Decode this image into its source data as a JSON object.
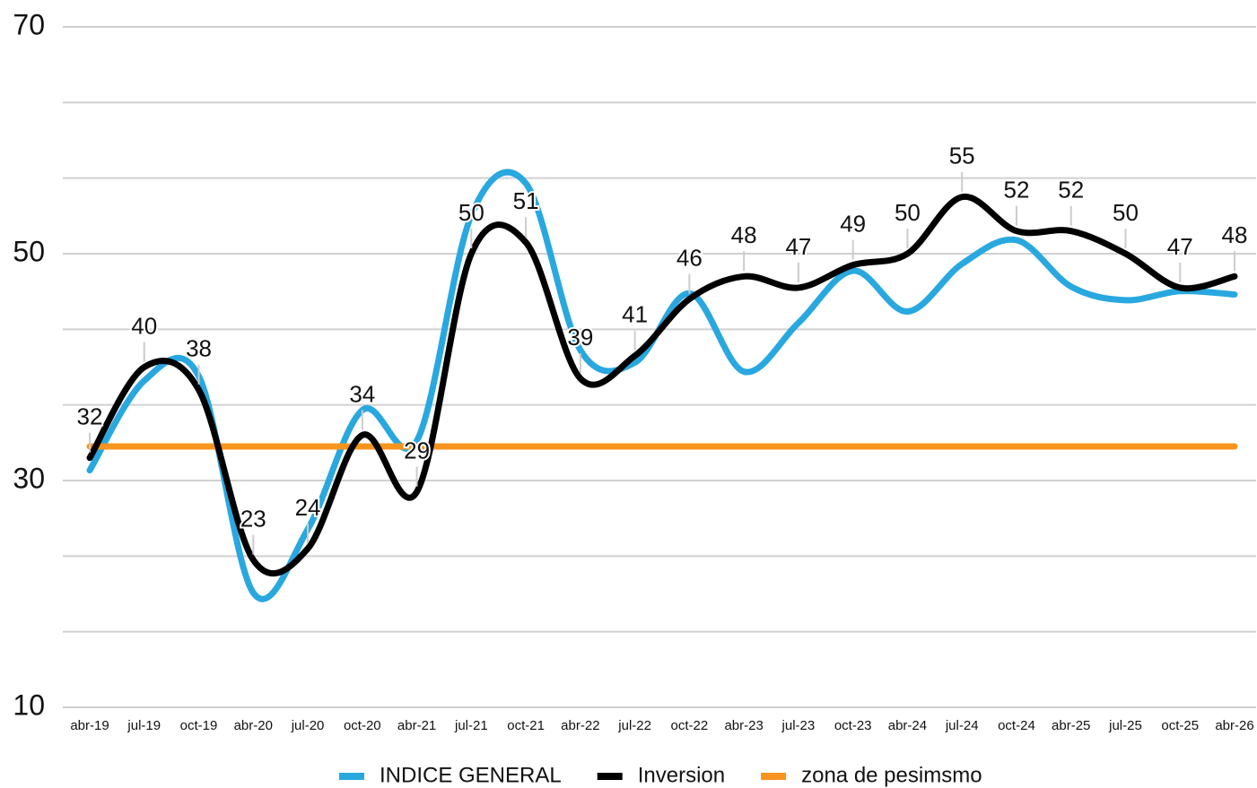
{
  "chart_data": {
    "type": "line",
    "categories": [
      "abr-19",
      "jul-19",
      "oct-19",
      "abr-20",
      "jul-20",
      "oct-20",
      "abr-21",
      "jul-21",
      "oct-21",
      "abr-22",
      "jul-22",
      "oct-22",
      "abr-23",
      "jul-23",
      "oct-23",
      "abr-24",
      "jul-24",
      "oct-24",
      "abr-25",
      "jul-25",
      "oct-25",
      "abr-26"
    ],
    "series": [
      {
        "name": "INDICE GENERAL",
        "color": "#29a8e0",
        "values": [
          30.9,
          38.8,
          39.2,
          20.1,
          25.7,
          36.2,
          33.5,
          53.4,
          56.2,
          41.5,
          40.4,
          46.5,
          39.6,
          43.9,
          48.5,
          44.9,
          49.1,
          51.2,
          47.1,
          45.9,
          46.7,
          46.4
        ]
      },
      {
        "name": "Inversion",
        "color": "#000000",
        "labels": true,
        "values": [
          32,
          40,
          38,
          23,
          24,
          34,
          29,
          50,
          51,
          39,
          41,
          46,
          48,
          47,
          49,
          50,
          55,
          52,
          52,
          50,
          47,
          48
        ]
      },
      {
        "name": "zona de pesimsmo",
        "color": "#f7941d",
        "values": [
          33,
          33,
          33,
          33,
          33,
          33,
          33,
          33,
          33,
          33,
          33,
          33,
          33,
          33,
          33,
          33,
          33,
          33,
          33,
          33,
          33,
          33
        ]
      }
    ],
    "ylim": [
      10,
      70
    ],
    "yticks": [
      10,
      30,
      50,
      70
    ],
    "grid_lines": [
      10,
      16.67,
      23.33,
      30,
      36.67,
      43.33,
      50,
      56.67,
      63.33,
      70
    ],
    "legend": "bottom"
  }
}
